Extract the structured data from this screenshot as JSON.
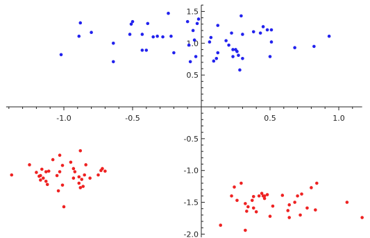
{
  "chart_data": {
    "type": "scatter",
    "title": "",
    "xlabel": "",
    "ylabel": "",
    "xlim": [
      -1.42,
      1.17
    ],
    "ylim": [
      -2.05,
      1.6
    ],
    "grid": false,
    "axes_origin": [
      0,
      0
    ],
    "x_ticks": [
      {
        "value": -1.0,
        "label": "-1.0"
      },
      {
        "value": -0.5,
        "label": "-0.5"
      },
      {
        "value": 0.5,
        "label": "0.5"
      },
      {
        "value": 1.0,
        "label": "1.0"
      }
    ],
    "y_ticks": [
      {
        "value": -2.0,
        "label": "-2.0"
      },
      {
        "value": -1.5,
        "label": "-1.5"
      },
      {
        "value": -1.0,
        "label": "-1.0"
      },
      {
        "value": -0.5,
        "label": "-0.5"
      },
      {
        "value": 0.5,
        "label": "0.5"
      },
      {
        "value": 1.0,
        "label": "1.0"
      },
      {
        "value": 1.5,
        "label": "1.5"
      }
    ],
    "series": [
      {
        "color": "#2222ee",
        "points": [
          [
            -1.02,
            0.82
          ],
          [
            -0.89,
            1.11
          ],
          [
            -0.88,
            1.32
          ],
          [
            -0.8,
            1.17
          ],
          [
            -0.64,
            0.71
          ],
          [
            -0.64,
            1.0
          ],
          [
            -0.52,
            1.14
          ],
          [
            -0.51,
            1.3
          ],
          [
            -0.5,
            1.34
          ],
          [
            -0.43,
            0.89
          ],
          [
            -0.43,
            1.14
          ],
          [
            -0.4,
            0.89
          ],
          [
            -0.39,
            1.31
          ],
          [
            -0.35,
            1.1
          ],
          [
            -0.32,
            1.11
          ],
          [
            -0.28,
            1.1
          ],
          [
            -0.24,
            1.47
          ],
          [
            -0.22,
            1.11
          ],
          [
            -0.2,
            0.85
          ],
          [
            -0.1,
            1.34
          ],
          [
            -0.09,
            0.97
          ],
          [
            -0.08,
            0.71
          ],
          [
            -0.05,
            1.05
          ],
          [
            -0.06,
            1.2
          ],
          [
            -0.04,
            0.79
          ],
          [
            -0.03,
            1.31
          ],
          [
            -0.02,
            1.38
          ],
          [
            0.06,
            1.02
          ],
          [
            0.07,
            1.09
          ],
          [
            0.09,
            0.72
          ],
          [
            0.11,
            0.76
          ],
          [
            0.12,
            0.85
          ],
          [
            0.12,
            1.28
          ],
          [
            0.18,
            1.04
          ],
          [
            0.2,
            0.97
          ],
          [
            0.22,
            1.16
          ],
          [
            0.23,
            0.9
          ],
          [
            0.23,
            0.79
          ],
          [
            0.25,
            0.9
          ],
          [
            0.26,
            0.87
          ],
          [
            0.27,
            0.81
          ],
          [
            0.28,
            0.58
          ],
          [
            0.29,
            1.43
          ],
          [
            0.3,
            1.14
          ],
          [
            0.3,
            0.76
          ],
          [
            0.38,
            1.18
          ],
          [
            0.43,
            1.16
          ],
          [
            0.45,
            1.26
          ],
          [
            0.48,
            1.21
          ],
          [
            0.5,
            0.79
          ],
          [
            0.51,
            1.02
          ],
          [
            0.51,
            1.21
          ],
          [
            0.68,
            0.93
          ],
          [
            0.82,
            0.95
          ],
          [
            0.93,
            1.11
          ]
        ]
      },
      {
        "color": "#ee2222",
        "points": [
          [
            -1.38,
            -1.07
          ],
          [
            -1.25,
            -0.91
          ],
          [
            -1.2,
            -1.03
          ],
          [
            -1.18,
            -1.09
          ],
          [
            -1.17,
            -1.08
          ],
          [
            -1.17,
            -1.15
          ],
          [
            -1.16,
            -0.98
          ],
          [
            -1.15,
            -1.12
          ],
          [
            -1.13,
            -1.02
          ],
          [
            -1.13,
            -1.17
          ],
          [
            -1.12,
            -1.22
          ],
          [
            -1.11,
            -1.01
          ],
          [
            -1.08,
            -0.83
          ],
          [
            -1.05,
            -1.08
          ],
          [
            -1.04,
            -1.32
          ],
          [
            -1.03,
            -0.76
          ],
          [
            -1.03,
            -1.02
          ],
          [
            -1.01,
            -1.23
          ],
          [
            -1.01,
            -0.92
          ],
          [
            -1.0,
            -1.57
          ],
          [
            -0.95,
            -0.87
          ],
          [
            -0.93,
            -1.12
          ],
          [
            -0.93,
            -0.97
          ],
          [
            -0.92,
            -1.02
          ],
          [
            -0.89,
            -1.2
          ],
          [
            -0.89,
            -1.1
          ],
          [
            -0.88,
            -1.27
          ],
          [
            -0.88,
            -0.69
          ],
          [
            -0.87,
            -1.14
          ],
          [
            -0.86,
            -1.25
          ],
          [
            -0.85,
            -1.07
          ],
          [
            -0.84,
            -0.91
          ],
          [
            -0.81,
            -1.12
          ],
          [
            -0.75,
            -1.07
          ],
          [
            -0.73,
            -1.0
          ],
          [
            -0.72,
            -0.97
          ],
          [
            -0.7,
            -1.01
          ],
          [
            0.14,
            -1.86
          ],
          [
            0.22,
            -1.4
          ],
          [
            0.24,
            -1.26
          ],
          [
            0.26,
            -1.47
          ],
          [
            0.29,
            -1.2
          ],
          [
            0.32,
            -1.52
          ],
          [
            0.32,
            -1.94
          ],
          [
            0.33,
            -1.64
          ],
          [
            0.34,
            -1.57
          ],
          [
            0.37,
            -1.47
          ],
          [
            0.38,
            -1.41
          ],
          [
            0.38,
            -1.59
          ],
          [
            0.4,
            -1.65
          ],
          [
            0.42,
            -1.4
          ],
          [
            0.44,
            -1.36
          ],
          [
            0.45,
            -1.4
          ],
          [
            0.46,
            -1.44
          ],
          [
            0.46,
            -1.4
          ],
          [
            0.48,
            -1.38
          ],
          [
            0.5,
            -1.72
          ],
          [
            0.52,
            -1.56
          ],
          [
            0.59,
            -1.39
          ],
          [
            0.63,
            -1.63
          ],
          [
            0.64,
            -1.54
          ],
          [
            0.64,
            -1.74
          ],
          [
            0.68,
            -1.5
          ],
          [
            0.7,
            -1.4
          ],
          [
            0.72,
            -1.7
          ],
          [
            0.73,
            -1.37
          ],
          [
            0.77,
            -1.59
          ],
          [
            0.8,
            -1.27
          ],
          [
            0.83,
            -1.62
          ],
          [
            0.84,
            -1.2
          ],
          [
            1.06,
            -1.5
          ],
          [
            1.17,
            -1.74
          ]
        ]
      }
    ]
  }
}
